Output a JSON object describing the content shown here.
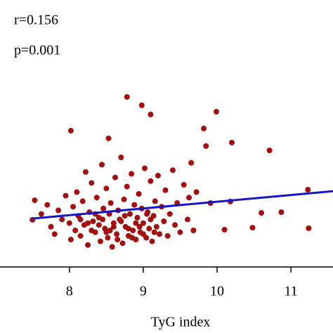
{
  "chart_data": {
    "type": "scatter",
    "annotations": [
      "r=0.156",
      "p=0.001"
    ],
    "xlabel": "TyG index",
    "xlim": [
      7.06,
      11.57
    ],
    "xticks": [
      8,
      9,
      10,
      11
    ],
    "ylim": [
      0,
      10
    ],
    "color": "#a01010",
    "fit_color": "#1515c8",
    "fit": {
      "x": [
        7.5,
        11.57
      ],
      "y": [
        2.65,
        4.15
      ]
    },
    "x": [
      8.78,
      8.98,
      8.02,
      9.99,
      9.1,
      9.82,
      9.85,
      10.2,
      10.71,
      11.23,
      11.24,
      10.87,
      10.6,
      10.48,
      10.18,
      9.91,
      10.1,
      8.53,
      7.53,
      7.5,
      7.62,
      7.7,
      7.75,
      7.8,
      7.85,
      7.9,
      7.95,
      8.0,
      8.02,
      8.05,
      8.08,
      8.1,
      8.12,
      8.15,
      8.18,
      8.2,
      8.22,
      8.25,
      8.27,
      8.3,
      8.32,
      8.35,
      8.37,
      8.4,
      8.42,
      8.44,
      8.46,
      8.48,
      8.5,
      8.52,
      8.54,
      8.56,
      8.58,
      8.6,
      8.62,
      8.64,
      8.66,
      8.68,
      8.7,
      8.72,
      8.74,
      8.76,
      8.78,
      8.8,
      8.82,
      8.84,
      8.86,
      8.88,
      8.9,
      8.92,
      8.94,
      8.96,
      8.98,
      9.0,
      9.02,
      9.04,
      9.06,
      9.08,
      9.1,
      9.12,
      9.14,
      9.16,
      9.18,
      9.2,
      9.22,
      9.25,
      9.28,
      9.3,
      9.33,
      9.36,
      9.4,
      9.43,
      9.46,
      9.5,
      9.55,
      9.6,
      9.62,
      9.65,
      9.68,
      9.72,
      8.3,
      8.4,
      8.5,
      8.6,
      8.7,
      8.8,
      8.9,
      9.0,
      9.1,
      8.45,
      8.55,
      8.65,
      8.75,
      8.85,
      8.95,
      9.05,
      9.15,
      8.35,
      8.25,
      8.15
    ],
    "y": [
      9.31,
      8.85,
      7.46,
      8.5,
      8.35,
      7.58,
      6.62,
      6.81,
      6.38,
      4.23,
      2.12,
      3.0,
      2.96,
      2.15,
      3.58,
      3.5,
      2.04,
      7.04,
      3.65,
      2.58,
      2.9,
      3.4,
      2.2,
      1.8,
      3.1,
      2.6,
      3.9,
      2.4,
      1.5,
      3.3,
      2.0,
      4.1,
      2.8,
      1.7,
      3.6,
      2.3,
      5.2,
      1.2,
      3.0,
      4.6,
      2.5,
      1.9,
      3.8,
      2.7,
      1.4,
      5.6,
      3.2,
      2.1,
      4.3,
      1.6,
      2.9,
      3.5,
      1.1,
      2.4,
      4.9,
      1.8,
      3.1,
      2.6,
      6.0,
      1.3,
      3.7,
      2.2,
      4.4,
      1.7,
      2.9,
      5.1,
      2.0,
      3.4,
      1.5,
      2.7,
      4.0,
      1.9,
      3.2,
      2.4,
      5.4,
      1.6,
      3.0,
      2.1,
      4.7,
      1.4,
      2.8,
      3.6,
      2.2,
      5.0,
      1.8,
      3.3,
      2.5,
      4.2,
      1.7,
      2.9,
      5.3,
      2.3,
      3.5,
      1.9,
      4.5,
      2.6,
      3.8,
      5.7,
      2.0,
      4.1,
      2.0,
      2.3,
      1.9,
      2.2,
      2.5,
      2.1,
      2.4,
      1.8,
      2.6,
      2.6,
      2.0,
      1.5,
      2.8,
      1.6,
      2.2,
      2.9,
      1.9,
      2.9,
      2.4,
      2.6
    ]
  }
}
